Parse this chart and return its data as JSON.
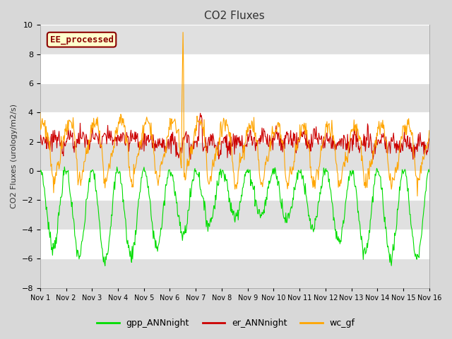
{
  "title": "CO2 Fluxes",
  "ylabel": "CO2 Fluxes (urology/m2/s)",
  "ylim": [
    -8,
    10
  ],
  "yticks": [
    -8,
    -6,
    -4,
    -2,
    0,
    2,
    4,
    6,
    8,
    10
  ],
  "start_day": 1,
  "end_day": 16,
  "n_points_per_day": 48,
  "colors": {
    "gpp": "#00dd00",
    "er": "#cc0000",
    "wc": "#ffa500"
  },
  "legend_labels": [
    "gpp_ANNnight",
    "er_ANNnight",
    "wc_gf"
  ],
  "annotation_text": "EE_processed",
  "annotation_facecolor": "#ffffcc",
  "annotation_edgecolor": "#8b0000",
  "annotation_textcolor": "#8b0000",
  "fig_facecolor": "#d8d8d8",
  "plot_bg_color": "#ffffff",
  "gray_band_color": "#e0e0e0",
  "white_band_color": "#ffffff"
}
